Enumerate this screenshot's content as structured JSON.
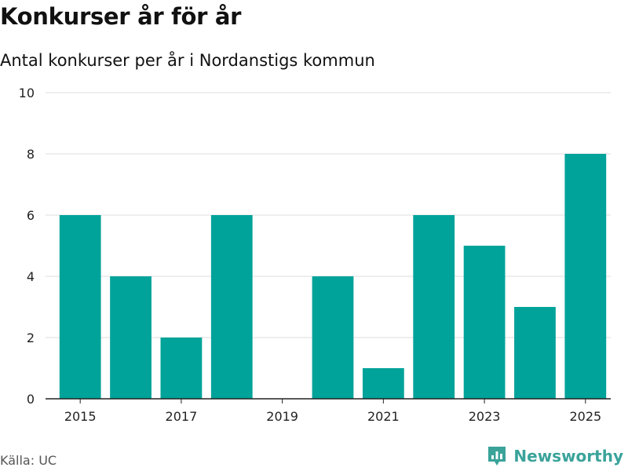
{
  "title": "Konkurser år för år",
  "subtitle": "Antal konkurser per år i Nordanstigs kommun",
  "source": "Källa: UC",
  "brand": {
    "name": "Newsworthy",
    "icon": "newsworthy-logo-icon",
    "color": "#3aa39a"
  },
  "chart_data": {
    "type": "bar",
    "categories": [
      "2015",
      "2016",
      "2017",
      "2018",
      "2019",
      "2020",
      "2021",
      "2022",
      "2023",
      "2024",
      "2025"
    ],
    "values": [
      6,
      4,
      2,
      6,
      0,
      4,
      1,
      6,
      5,
      3,
      8
    ],
    "xtick_labels": [
      "2015",
      "2017",
      "2019",
      "2021",
      "2023",
      "2025"
    ],
    "yticks": [
      0,
      2,
      4,
      6,
      8,
      10
    ],
    "ylim": [
      0,
      10
    ],
    "bar_color": "#00a39a",
    "grid": true,
    "xlabel": "",
    "ylabel": ""
  }
}
